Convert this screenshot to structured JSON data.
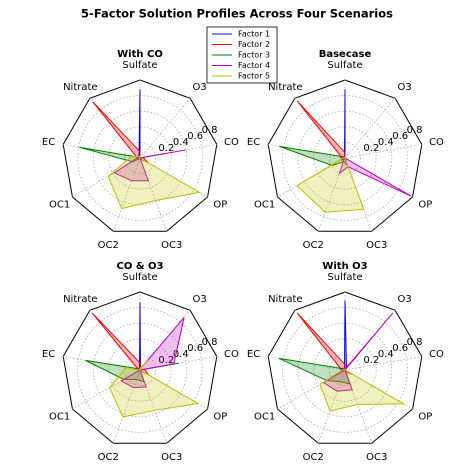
{
  "title": "5-Factor Solution Profiles Across Four Scenarios",
  "legend": {
    "corner": "upper center"
  },
  "chart_data": [
    {
      "type": "radar",
      "title": "With CO",
      "categories": [
        "Sulfate",
        "Nitrate",
        "EC",
        "OC1",
        "OC2",
        "OC3",
        "OP",
        "CO",
        "O3"
      ],
      "rlim": [
        0,
        1
      ],
      "rticks": [
        0.2,
        0.4,
        0.6,
        0.8
      ],
      "grid": true,
      "series": [
        {
          "name": "Factor 1",
          "color": "#0000ff",
          "values": [
            0.88,
            0.02,
            0.02,
            0.02,
            0.0,
            0.05,
            0.0,
            0.05,
            0.0
          ]
        },
        {
          "name": "Factor 2",
          "color": "#ff0000",
          "values": [
            0.08,
            0.94,
            0.04,
            0.02,
            0.0,
            0.01,
            0.12,
            0.04,
            0.0
          ]
        },
        {
          "name": "Factor 3",
          "color": "#008000",
          "values": [
            0.01,
            0.01,
            0.79,
            0.1,
            0.0,
            0.05,
            0.0,
            0.31,
            0.0
          ]
        },
        {
          "name": "Factor 4",
          "color": "#bf00bf",
          "values": [
            0.0,
            0.02,
            0.03,
            0.38,
            0.31,
            0.31,
            0.0,
            0.59,
            0.0
          ]
        },
        {
          "name": "Factor 5",
          "color": "#bfbf00",
          "values": [
            0.02,
            0.02,
            0.11,
            0.47,
            0.69,
            0.58,
            0.88,
            0.0,
            0.0
          ]
        }
      ]
    },
    {
      "type": "radar",
      "title": "Basecase",
      "categories": [
        "Sulfate",
        "Nitrate",
        "EC",
        "OC1",
        "OC2",
        "OC3",
        "OP",
        "CO",
        "O3"
      ],
      "rlim": [
        0,
        1
      ],
      "rticks": [
        0.2,
        0.4,
        0.6,
        0.8
      ],
      "grid": true,
      "series": [
        {
          "name": "Factor 1",
          "color": "#0000ff",
          "values": [
            0.88,
            0.01,
            0.03,
            0.03,
            0.0,
            0.06,
            0.01,
            0.0,
            0.0
          ]
        },
        {
          "name": "Factor 2",
          "color": "#ff0000",
          "values": [
            0.07,
            0.95,
            0.04,
            0.05,
            0.0,
            0.02,
            0.01,
            0.0,
            0.0
          ]
        },
        {
          "name": "Factor 3",
          "color": "#008000",
          "values": [
            0.01,
            0.02,
            0.85,
            0.19,
            0.05,
            0.1,
            0.0,
            0.0,
            0.0
          ]
        },
        {
          "name": "Factor 4",
          "color": "#bf00bf",
          "values": [
            0.02,
            0.01,
            0.07,
            0.01,
            0.21,
            0.12,
            0.98,
            0.0,
            0.0
          ]
        },
        {
          "name": "Factor 5",
          "color": "#bfbf00",
          "values": [
            0.01,
            0.01,
            0.02,
            0.71,
            0.74,
            0.7,
            0.0,
            0.0,
            0.0
          ]
        }
      ]
    },
    {
      "type": "radar",
      "title": "CO & O3",
      "categories": [
        "Sulfate",
        "Nitrate",
        "EC",
        "OC1",
        "OC2",
        "OC3",
        "OP",
        "CO",
        "O3"
      ],
      "rlim": [
        0,
        1
      ],
      "rticks": [
        0.2,
        0.4,
        0.6,
        0.8
      ],
      "grid": true,
      "series": [
        {
          "name": "Factor 1",
          "color": "#0000ff",
          "values": [
            0.87,
            0.01,
            0.08,
            0.0,
            0.0,
            0.04,
            0.0,
            0.0,
            0.01
          ]
        },
        {
          "name": "Factor 2",
          "color": "#ff0000",
          "values": [
            0.09,
            0.95,
            0.02,
            0.03,
            0.0,
            0.01,
            0.13,
            0.06,
            0.0
          ]
        },
        {
          "name": "Factor 3",
          "color": "#008000",
          "values": [
            0.01,
            0.02,
            0.71,
            0.24,
            0.13,
            0.16,
            0.0,
            0.5,
            0.0
          ]
        },
        {
          "name": "Factor 4",
          "color": "#bf00bf",
          "values": [
            0.01,
            0.03,
            0.0,
            0.28,
            0.24,
            0.23,
            0.0,
            0.44,
            0.88
          ]
        },
        {
          "name": "Factor 5",
          "color": "#bfbf00",
          "values": [
            0.02,
            0.0,
            0.18,
            0.45,
            0.64,
            0.55,
            0.86,
            0.0,
            0.16
          ]
        }
      ]
    },
    {
      "type": "radar",
      "title": "With O3",
      "categories": [
        "Sulfate",
        "Nitrate",
        "EC",
        "OC1",
        "OC2",
        "OC3",
        "OP",
        "CO",
        "O3"
      ],
      "rlim": [
        0,
        1
      ],
      "rticks": [
        0.2,
        0.4,
        0.6,
        0.8
      ],
      "grid": true,
      "series": [
        {
          "name": "Factor 1",
          "color": "#0000ff",
          "values": [
            0.89,
            0.01,
            0.07,
            0.0,
            0.0,
            0.05,
            0.0,
            0.0,
            0.03
          ]
        },
        {
          "name": "Factor 2",
          "color": "#ff0000",
          "values": [
            0.07,
            0.95,
            0.05,
            0.04,
            0.0,
            0.02,
            0.12,
            0.0,
            0.0
          ]
        },
        {
          "name": "Factor 3",
          "color": "#008000",
          "values": [
            0.01,
            0.02,
            0.86,
            0.27,
            0.16,
            0.19,
            0.0,
            0.0,
            0.0
          ]
        },
        {
          "name": "Factor 4",
          "color": "#bf00bf",
          "values": [
            0.01,
            0.03,
            0.0,
            0.32,
            0.29,
            0.27,
            0.0,
            0.0,
            0.95
          ]
        },
        {
          "name": "Factor 5",
          "color": "#bfbf00",
          "values": [
            0.02,
            0.0,
            0.03,
            0.37,
            0.56,
            0.47,
            0.87,
            0.0,
            0.0
          ]
        }
      ]
    }
  ]
}
